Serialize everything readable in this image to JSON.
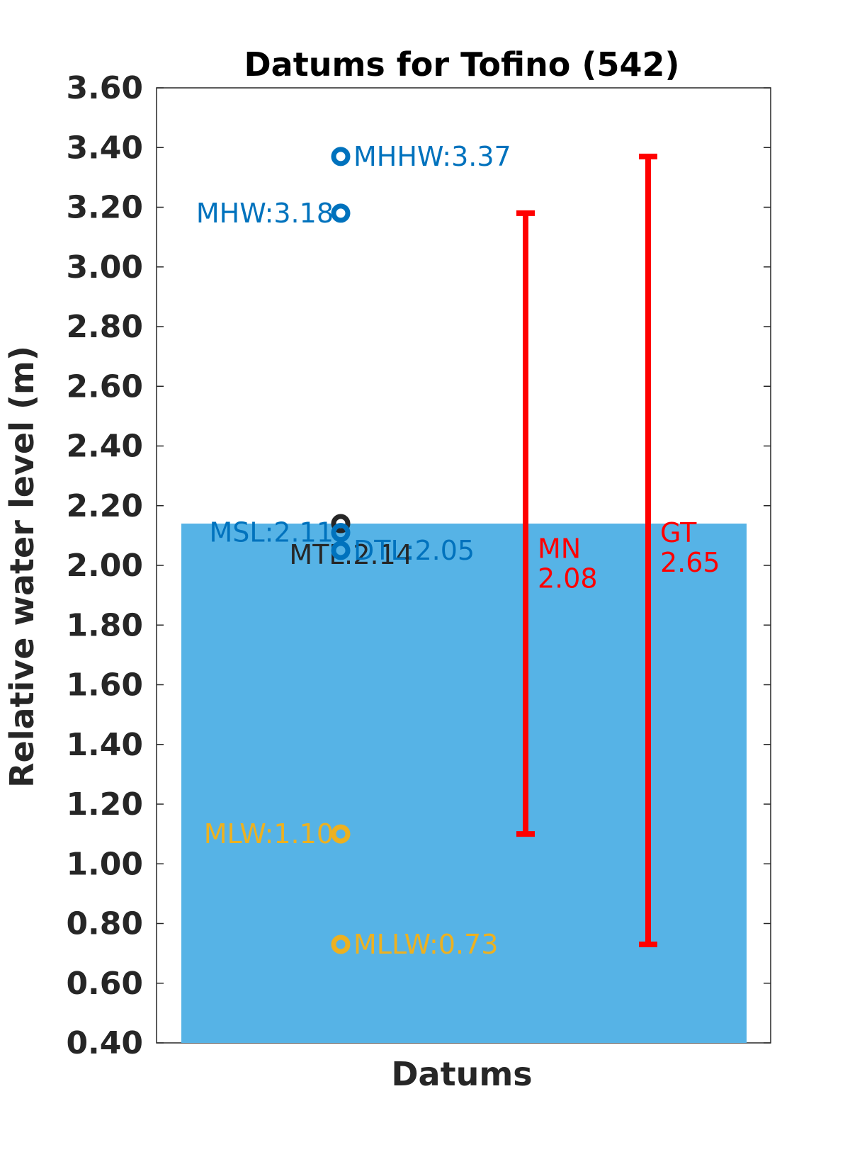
{
  "chart_data": {
    "type": "bar",
    "title": "Datums for Tofino (542)",
    "xlabel": "Datums",
    "ylabel": "Relative water level (m)",
    "ylim": [
      0.4,
      3.6
    ],
    "yticks": [
      "0.40",
      "0.60",
      "0.80",
      "1.00",
      "1.20",
      "1.40",
      "1.60",
      "1.80",
      "2.00",
      "2.20",
      "2.40",
      "2.60",
      "2.80",
      "3.00",
      "3.20",
      "3.40",
      "3.60"
    ],
    "bar": {
      "value": 2.14,
      "color": "#56b3e6"
    },
    "points": [
      {
        "label": "MHHW:3.37",
        "value": 3.37,
        "color": "#0072bd",
        "label_side": "right"
      },
      {
        "label": "MHW:3.18",
        "value": 3.18,
        "color": "#0072bd",
        "label_side": "left"
      },
      {
        "label": "MTL:2.14",
        "value": 2.14,
        "color": "#262626",
        "label_side": "left-below"
      },
      {
        "label": "MSL:2.11",
        "value": 2.11,
        "color": "#0072bd",
        "label_side": "left"
      },
      {
        "label": "DTL:2.05",
        "value": 2.05,
        "color": "#0072bd",
        "label_side": "right"
      },
      {
        "label": "MLW:1.10",
        "value": 1.1,
        "color": "#edb120",
        "label_side": "left"
      },
      {
        "label": "MLLW:0.73",
        "value": 0.73,
        "color": "#edb120",
        "label_side": "right"
      }
    ],
    "ranges": [
      {
        "name": "MN",
        "value": "2.08",
        "low": 1.1,
        "high": 3.18,
        "color": "#ff0000"
      },
      {
        "name": "GT",
        "value": "2.65",
        "low": 0.73,
        "high": 3.37,
        "color": "#ff0000"
      }
    ],
    "grid": false
  }
}
